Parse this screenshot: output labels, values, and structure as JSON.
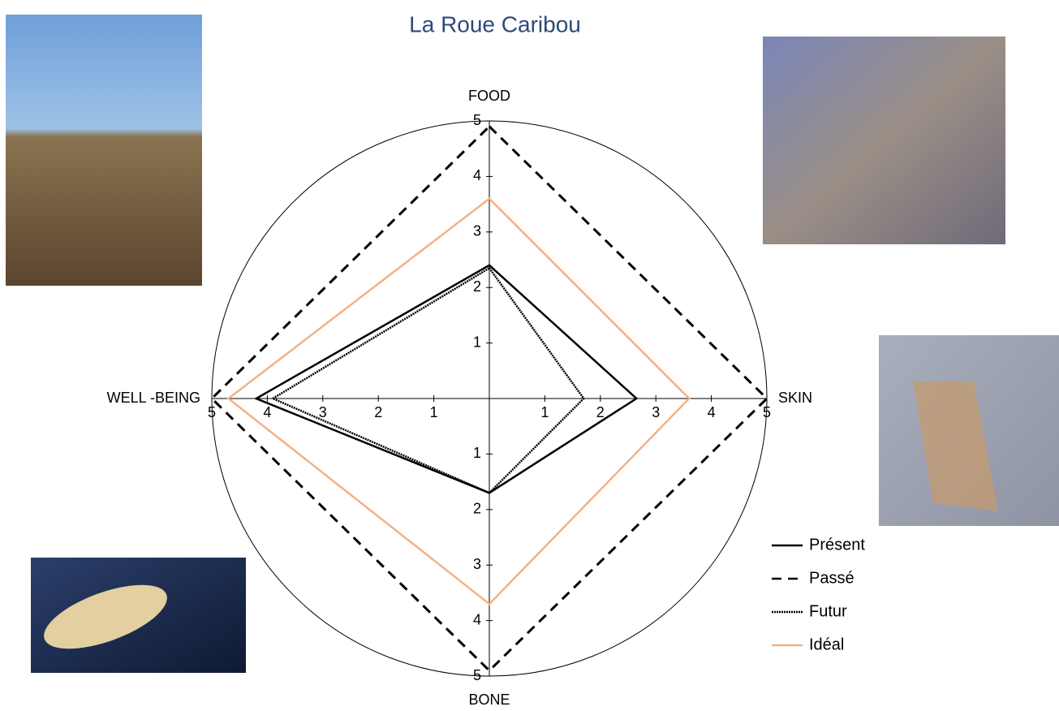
{
  "chart_data": {
    "type": "radar",
    "title": "La Roue Caribou",
    "categories": [
      "FOOD",
      "SKIN",
      "BONE",
      "WELL -BEING"
    ],
    "rlim": [
      0,
      5
    ],
    "rticks": [
      1,
      2,
      3,
      4,
      5
    ],
    "series": [
      {
        "name": "Présent",
        "color": "#000000",
        "dash": "none",
        "values": [
          2.4,
          2.65,
          1.7,
          4.2
        ]
      },
      {
        "name": "Passé",
        "color": "#000000",
        "dash": "12 8",
        "values": [
          4.9,
          5.0,
          4.9,
          5.0
        ]
      },
      {
        "name": "Futur",
        "color": "#000000",
        "dash": "2 1",
        "values": [
          2.35,
          1.7,
          1.7,
          3.9
        ]
      },
      {
        "name": "Idéal",
        "color": "#f4b183",
        "dash": "none",
        "values": [
          3.6,
          3.6,
          3.7,
          4.7
        ]
      }
    ],
    "legend": "bottom-right"
  }
}
